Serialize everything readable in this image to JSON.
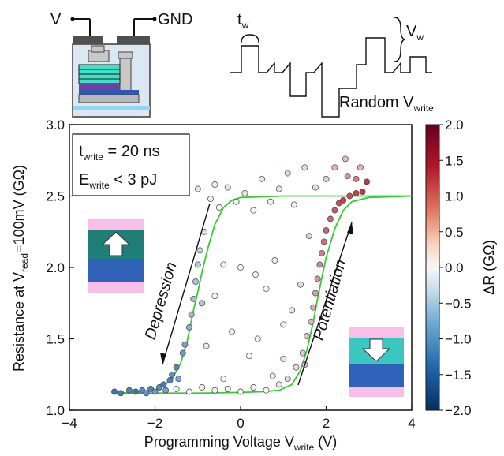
{
  "colors": {
    "fit_curve": "#33cc33",
    "cmap_low": "#2166ac",
    "cmap_mid": "#f7f7f7",
    "cmap_high": "#b2182b",
    "device_teal": "#40e0c8",
    "device_purple": "#7040a0",
    "device_blue": "#2a5ab8",
    "device_contact": "#505050",
    "state_pink": "#f8c0e8",
    "state_teal_dark": "#1f7f78",
    "state_teal_light": "#3ac7c0",
    "state_blue": "#2f62b8"
  },
  "schematic": {
    "label_v": "V",
    "label_gnd": "GND",
    "label_tw_base": "t",
    "label_tw_sub": "w",
    "label_vw_base": "V",
    "label_vw_sub": "w",
    "label_random_base": "Random V",
    "label_random_sub": "write",
    "pulse_levels": [
      1.0,
      0.6,
      0.3,
      -0.3,
      -1.6,
      -1.0,
      -0.2,
      0.9,
      2.6,
      0.5,
      1.2,
      0.2
    ]
  },
  "chart_data": {
    "type": "scatter",
    "xlabel_base": "Programming Voltage V",
    "xlabel_sub": "write",
    "xlabel_unit": " (V)",
    "ylabel_part1": "Resistance at V",
    "ylabel_sub": "read",
    "ylabel_part2": "=100mV (GΩ)",
    "xlim": [
      -4,
      4
    ],
    "ylim": [
      1.0,
      3.0
    ],
    "xticks": [
      "−4",
      "−2",
      "0",
      "2",
      "4"
    ],
    "xtick_values": [
      -4,
      -2,
      0,
      2,
      4
    ],
    "yticks": [
      "1.0",
      "1.5",
      "2.0",
      "2.5",
      "3.0"
    ],
    "ytick_values": [
      1.0,
      1.5,
      2.0,
      2.5,
      3.0
    ],
    "colorbar": {
      "label": "ΔR (GΩ)",
      "range": [
        -2.0,
        2.0
      ],
      "ticks": [
        "2.0",
        "1.5",
        "1.0",
        "0.5",
        "0.0",
        "−0.5",
        "−1.0",
        "−1.5",
        "−2.0"
      ],
      "tick_values": [
        2.0,
        1.5,
        1.0,
        0.5,
        0.0,
        -0.5,
        -1.0,
        -1.5,
        -2.0
      ]
    },
    "annotations": {
      "t_base": "t",
      "t_sub": "write",
      "t_value": " = 20 ns",
      "e_base": "E",
      "e_sub": "write",
      "e_value": " < 3 pJ",
      "depression": "Depression",
      "potentiation": "Potentiation"
    },
    "fit_curves": [
      {
        "x": [
          -3.0,
          -2.5,
          -2.0,
          -1.8,
          -1.6,
          -1.4,
          -1.25,
          -1.1,
          -1.0,
          -0.9,
          -0.75,
          -0.6,
          -0.4,
          -0.2,
          0.0,
          1.0,
          2.0,
          3.0,
          4.0
        ],
        "y": [
          1.12,
          1.125,
          1.14,
          1.17,
          1.22,
          1.33,
          1.48,
          1.7,
          1.83,
          1.97,
          2.15,
          2.3,
          2.42,
          2.47,
          2.49,
          2.5,
          2.5,
          2.5,
          2.5
        ]
      },
      {
        "x": [
          -3.0,
          -2.0,
          -1.0,
          0.0,
          0.5,
          0.9,
          1.2,
          1.4,
          1.55,
          1.7,
          1.8,
          1.9,
          2.0,
          2.2,
          2.4,
          2.6,
          3.0,
          4.0
        ],
        "y": [
          1.12,
          1.12,
          1.12,
          1.125,
          1.13,
          1.14,
          1.18,
          1.28,
          1.42,
          1.62,
          1.78,
          1.93,
          2.07,
          2.27,
          2.4,
          2.46,
          2.49,
          2.5
        ]
      }
    ],
    "points": [
      {
        "x": -2.95,
        "y": 1.13,
        "dr": -1.8
      },
      {
        "x": -2.8,
        "y": 1.12,
        "dr": -1.7
      },
      {
        "x": -2.6,
        "y": 1.14,
        "dr": -1.6
      },
      {
        "x": -2.45,
        "y": 1.13,
        "dr": -1.8
      },
      {
        "x": -2.3,
        "y": 1.14,
        "dr": -1.5
      },
      {
        "x": -2.2,
        "y": 1.12,
        "dr": -1.4
      },
      {
        "x": -2.1,
        "y": 1.15,
        "dr": -1.6
      },
      {
        "x": -2.0,
        "y": 1.13,
        "dr": -1.3
      },
      {
        "x": -1.9,
        "y": 1.16,
        "dr": -1.5
      },
      {
        "x": -1.8,
        "y": 1.18,
        "dr": -1.7
      },
      {
        "x": -1.75,
        "y": 1.14,
        "dr": -1.2
      },
      {
        "x": -1.65,
        "y": 1.21,
        "dr": -1.6
      },
      {
        "x": -1.6,
        "y": 1.25,
        "dr": -1.4
      },
      {
        "x": -1.5,
        "y": 1.3,
        "dr": -1.5
      },
      {
        "x": -1.45,
        "y": 1.22,
        "dr": -1.1
      },
      {
        "x": -1.35,
        "y": 1.4,
        "dr": -1.3
      },
      {
        "x": -1.3,
        "y": 1.46,
        "dr": -1.2
      },
      {
        "x": -1.2,
        "y": 1.58,
        "dr": -1.0
      },
      {
        "x": -1.15,
        "y": 1.67,
        "dr": -0.9
      },
      {
        "x": -1.1,
        "y": 1.78,
        "dr": -0.8
      },
      {
        "x": -1.05,
        "y": 1.9,
        "dr": -0.7
      },
      {
        "x": -1.0,
        "y": 2.02,
        "dr": -0.6
      },
      {
        "x": -0.95,
        "y": 2.12,
        "dr": -0.5
      },
      {
        "x": -0.9,
        "y": 1.75,
        "dr": -0.7
      },
      {
        "x": -0.85,
        "y": 2.25,
        "dr": -0.3
      },
      {
        "x": -1.0,
        "y": 2.55,
        "dr": -0.2
      },
      {
        "x": -0.7,
        "y": 2.48,
        "dr": -0.1
      },
      {
        "x": -0.6,
        "y": 2.58,
        "dr": 0.1
      },
      {
        "x": -0.5,
        "y": 2.42,
        "dr": 0.0
      },
      {
        "x": -0.3,
        "y": 2.56,
        "dr": 0.2
      },
      {
        "x": -0.1,
        "y": 2.46,
        "dr": 0.1
      },
      {
        "x": 0.1,
        "y": 2.52,
        "dr": 0.2
      },
      {
        "x": 0.3,
        "y": 2.4,
        "dr": 0.0
      },
      {
        "x": 0.5,
        "y": 2.62,
        "dr": 0.2
      },
      {
        "x": 0.7,
        "y": 2.46,
        "dr": 0.1
      },
      {
        "x": 0.9,
        "y": 2.55,
        "dr": 0.2
      },
      {
        "x": 1.1,
        "y": 2.66,
        "dr": 0.3
      },
      {
        "x": 1.25,
        "y": 2.44,
        "dr": 0.1
      },
      {
        "x": 1.5,
        "y": 2.7,
        "dr": 0.3
      },
      {
        "x": -0.4,
        "y": 2.02,
        "dr": -0.1
      },
      {
        "x": 0.0,
        "y": 2.0,
        "dr": 0.0
      },
      {
        "x": 0.35,
        "y": 1.95,
        "dr": 0.1
      },
      {
        "x": 0.8,
        "y": 2.05,
        "dr": 0.1
      },
      {
        "x": -0.6,
        "y": 1.8,
        "dr": 0.0
      },
      {
        "x": 0.6,
        "y": 1.85,
        "dr": 0.0
      },
      {
        "x": -0.2,
        "y": 1.55,
        "dr": -0.1
      },
      {
        "x": 0.4,
        "y": 1.5,
        "dr": 0.0
      },
      {
        "x": 1.0,
        "y": 1.6,
        "dr": 0.1
      },
      {
        "x": -0.8,
        "y": 1.45,
        "dr": -0.2
      },
      {
        "x": 0.2,
        "y": 1.38,
        "dr": 0.0
      },
      {
        "x": 1.2,
        "y": 1.7,
        "dr": 0.2
      },
      {
        "x": -1.5,
        "y": 1.15,
        "dr": -0.1
      },
      {
        "x": -1.2,
        "y": 1.13,
        "dr": 0.0
      },
      {
        "x": -0.9,
        "y": 1.16,
        "dr": 0.1
      },
      {
        "x": -0.6,
        "y": 1.14,
        "dr": 0.0
      },
      {
        "x": -0.3,
        "y": 1.15,
        "dr": 0.1
      },
      {
        "x": 0.0,
        "y": 1.13,
        "dr": 0.0
      },
      {
        "x": 0.3,
        "y": 1.16,
        "dr": 0.1
      },
      {
        "x": 0.6,
        "y": 1.14,
        "dr": 0.0
      },
      {
        "x": 0.9,
        "y": 1.18,
        "dr": 0.2
      },
      {
        "x": 1.1,
        "y": 1.22,
        "dr": 0.3
      },
      {
        "x": 0.75,
        "y": 1.24,
        "dr": 0.1
      },
      {
        "x": -0.4,
        "y": 1.22,
        "dr": 0.0
      },
      {
        "x": 1.3,
        "y": 1.3,
        "dr": 0.3
      },
      {
        "x": 1.45,
        "y": 1.4,
        "dr": 0.4
      },
      {
        "x": 1.55,
        "y": 1.52,
        "dr": 0.5
      },
      {
        "x": 1.65,
        "y": 1.62,
        "dr": 0.6
      },
      {
        "x": 1.7,
        "y": 1.72,
        "dr": 0.7
      },
      {
        "x": 1.75,
        "y": 1.82,
        "dr": 0.8
      },
      {
        "x": 1.8,
        "y": 1.92,
        "dr": 0.9
      },
      {
        "x": 1.85,
        "y": 2.02,
        "dr": 1.0
      },
      {
        "x": 1.9,
        "y": 2.1,
        "dr": 1.1
      },
      {
        "x": 1.95,
        "y": 2.18,
        "dr": 1.2
      },
      {
        "x": 2.0,
        "y": 2.26,
        "dr": 1.3
      },
      {
        "x": 2.1,
        "y": 2.34,
        "dr": 1.3
      },
      {
        "x": 2.2,
        "y": 2.4,
        "dr": 1.4
      },
      {
        "x": 2.3,
        "y": 2.45,
        "dr": 1.5
      },
      {
        "x": 2.4,
        "y": 2.47,
        "dr": 1.6
      },
      {
        "x": 2.55,
        "y": 2.5,
        "dr": 1.5
      },
      {
        "x": 2.7,
        "y": 2.52,
        "dr": 1.6
      },
      {
        "x": 2.85,
        "y": 2.53,
        "dr": 1.7
      },
      {
        "x": 2.95,
        "y": 2.6,
        "dr": 1.7
      },
      {
        "x": 2.5,
        "y": 2.64,
        "dr": 0.9
      },
      {
        "x": 2.2,
        "y": 2.7,
        "dr": 0.6
      },
      {
        "x": 2.7,
        "y": 2.62,
        "dr": 1.1
      },
      {
        "x": 2.0,
        "y": 2.62,
        "dr": 0.4
      },
      {
        "x": 1.75,
        "y": 2.56,
        "dr": 0.3
      },
      {
        "x": 2.45,
        "y": 2.76,
        "dr": 0.5
      },
      {
        "x": 2.8,
        "y": 2.7,
        "dr": 0.6
      },
      {
        "x": 1.6,
        "y": 2.22,
        "dr": 0.4
      },
      {
        "x": 1.4,
        "y": 1.88,
        "dr": 0.3
      },
      {
        "x": 1.5,
        "y": 1.32,
        "dr": 0.5
      },
      {
        "x": 1.0,
        "y": 1.36,
        "dr": 0.2
      }
    ]
  }
}
